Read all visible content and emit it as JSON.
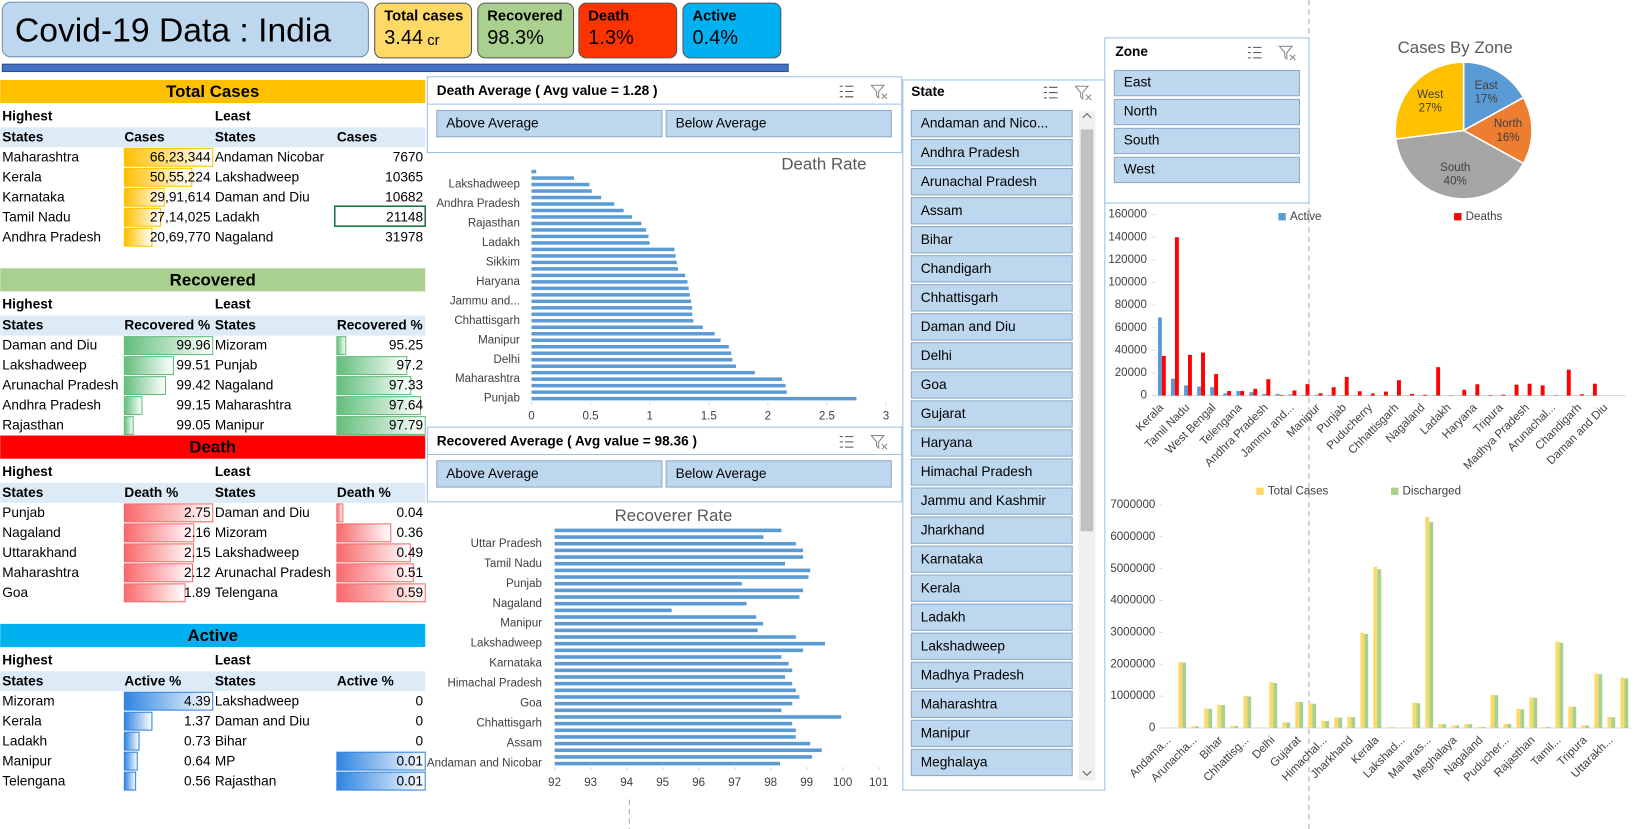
{
  "header": {
    "title": "Covid-19 Data : India",
    "kpis": [
      {
        "label": "Total cases",
        "value": "3.44",
        "unit": "cr",
        "color": "#ffd966"
      },
      {
        "label": "Recovered",
        "value": "98.3%",
        "color": "#a9d08e"
      },
      {
        "label": "Death",
        "value": "1.3%",
        "color": "#ff3300"
      },
      {
        "label": "Active",
        "value": "0.4%",
        "color": "#00b0f0"
      }
    ]
  },
  "tables": [
    {
      "title": "Total Cases",
      "color": "#ffc000",
      "bar_color": "#ffc000",
      "bar_base": "zero",
      "bars": [
        true,
        false
      ],
      "highest": "Highest",
      "least": "Least",
      "columns": [
        "States",
        "Cases",
        "States",
        "Cases"
      ],
      "rows": [
        [
          "Maharashtra",
          "66,23,344",
          "Andaman Nicobar",
          7670
        ],
        [
          "Kerala",
          "50,55,224",
          "Lakshadweep",
          10365
        ],
        [
          "Karnataka",
          "29,91,614",
          "Daman and Diu",
          10682
        ],
        [
          "Tamil Nadu",
          "27,14,025",
          "Ladakh",
          21148
        ],
        [
          "Andhra Pradesh",
          "20,69,770",
          "Nagaland",
          31978
        ]
      ]
    },
    {
      "title": "Recovered",
      "color": "#a9d08e",
      "bar_color": "#63be7b",
      "bar_base": "lowest",
      "bars": [
        true,
        true
      ],
      "highest": "Highest",
      "least": "Least",
      "columns": [
        "States",
        "Recovered %",
        "States",
        "Recovered %"
      ],
      "rows": [
        [
          "Daman and Diu",
          99.96,
          "Mizoram",
          95.25
        ],
        [
          "Lakshadweep",
          99.51,
          "Punjab",
          97.2
        ],
        [
          "Arunachal Pradesh",
          99.42,
          "Nagaland",
          97.33
        ],
        [
          "Andhra Pradesh",
          99.15,
          "Maharashtra",
          97.64
        ],
        [
          "Rajasthan",
          99.05,
          "Manipur",
          97.79
        ]
      ]
    },
    {
      "title": "Death",
      "color": "#ff0000",
      "bar_color": "#f8696b",
      "bar_base": "zero",
      "bars": [
        true,
        true
      ],
      "highest": "Highest",
      "least": "Least",
      "columns": [
        "States",
        "Death %",
        "States",
        "Death %"
      ],
      "rows": [
        [
          "Punjab",
          2.75,
          "Daman and Diu",
          0.04
        ],
        [
          "Nagaland",
          2.16,
          "Mizoram",
          0.36
        ],
        [
          "Uttarakhand",
          2.15,
          "Lakshadweep",
          0.49
        ],
        [
          "Maharashtra",
          2.12,
          "Arunachal Pradesh",
          0.51
        ],
        [
          "Goa",
          1.89,
          "Telengana",
          0.59
        ]
      ]
    },
    {
      "title": "Active",
      "color": "#00b0f0",
      "bar_color": "#2f84e0",
      "bar_base": "zero",
      "bars": [
        true,
        true
      ],
      "highest": "Highest",
      "least": "Least",
      "columns": [
        "States",
        "Active %",
        "States",
        "Active %"
      ],
      "rows": [
        [
          "Mizoram",
          4.39,
          "Lakshadweep",
          0
        ],
        [
          "Kerala",
          1.37,
          "Daman and Diu",
          0
        ],
        [
          "Ladakh",
          0.73,
          "Bihar",
          0
        ],
        [
          "Manipur",
          0.64,
          "MP",
          0.01
        ],
        [
          "Telengana",
          0.56,
          "Rajasthan",
          0.01
        ]
      ]
    }
  ],
  "slicers": {
    "death_average": {
      "title": "Death Average ( Avg value = 1.28 )",
      "items": [
        "Above Average",
        "Below Average"
      ]
    },
    "recovered_average": {
      "title": "Recovered Average ( Avg value = 98.36 )",
      "items": [
        "Above Average",
        "Below Average"
      ]
    },
    "state": {
      "title": "State",
      "items": [
        "Andaman and Nico...",
        "Andhra Pradesh",
        "Arunachal Pradesh",
        "Assam",
        "Bihar",
        "Chandigarh",
        "Chhattisgarh",
        "Daman and Diu",
        "Delhi",
        "Goa",
        "Gujarat",
        "Haryana",
        "Himachal Pradesh",
        "Jammu and Kashmir",
        "Jharkhand",
        "Karnataka",
        "Kerala",
        "Ladakh",
        "Lakshadweep",
        "Madhya Pradesh",
        "Maharashtra",
        "Manipur",
        "Meghalaya"
      ]
    },
    "zone": {
      "title": "Zone",
      "items": [
        "East",
        "North",
        "South",
        "West"
      ]
    }
  },
  "chart_data": [
    {
      "type": "barh",
      "title": "Death Rate",
      "color": "#5b9bd5",
      "categories": [
        null,
        null,
        "Lakshadweep",
        null,
        null,
        "Andhra Pradesh",
        null,
        null,
        "Rajasthan",
        null,
        null,
        "Ladakh",
        null,
        null,
        "Sikkim",
        null,
        null,
        "Haryana",
        null,
        null,
        "Jammu and...",
        null,
        null,
        "Chhattisgarh",
        null,
        null,
        "Manipur",
        null,
        null,
        "Delhi",
        null,
        null,
        "Maharashtra",
        null,
        null,
        "Punjab"
      ],
      "values": [
        0.04,
        0.36,
        0.49,
        0.51,
        0.59,
        0.7,
        0.78,
        0.85,
        0.93,
        0.97,
        0.99,
        1.0,
        1.21,
        1.22,
        1.23,
        1.24,
        1.3,
        1.32,
        1.33,
        1.34,
        1.35,
        1.36,
        1.36,
        1.37,
        1.45,
        1.55,
        1.6,
        1.67,
        1.69,
        1.7,
        1.73,
        1.89,
        2.12,
        2.15,
        2.16,
        2.75
      ],
      "xlim": [
        0,
        3
      ],
      "xticks": [
        0,
        0.5,
        1,
        1.5,
        2,
        2.5,
        3
      ]
    },
    {
      "type": "barh",
      "title": "Recoverer Rate",
      "color": "#5b9bd5",
      "categories": [
        null,
        null,
        "Uttar Pradesh",
        null,
        null,
        "Tamil Nadu",
        null,
        null,
        "Punjab",
        null,
        null,
        "Nagaland",
        null,
        null,
        "Manipur",
        null,
        null,
        "Lakshadweep",
        null,
        null,
        "Karnataka",
        null,
        null,
        "Himachal Pradesh",
        null,
        null,
        "Goa",
        null,
        null,
        "Chhattisgarh",
        null,
        null,
        "Assam",
        null,
        null,
        "Andaman and Nicobar"
      ],
      "values": [
        98.3,
        97.8,
        98.7,
        98.9,
        98.9,
        98.4,
        99.1,
        99.05,
        97.2,
        98.9,
        98.8,
        97.33,
        95.25,
        97.6,
        97.79,
        97.64,
        98.7,
        99.51,
        98.9,
        98.3,
        98.5,
        98.6,
        98.4,
        98.6,
        98.7,
        98.8,
        98.6,
        98.3,
        99.96,
        98.6,
        98.7,
        98.7,
        99.1,
        99.42,
        99.15,
        98.26
      ],
      "xlim": [
        92,
        101
      ],
      "xticks": [
        92,
        93,
        94,
        95,
        96,
        97,
        98,
        99,
        100,
        101
      ]
    },
    {
      "type": "pie",
      "title": "Cases By Zone",
      "categories": [
        "East",
        "North",
        "South",
        "West"
      ],
      "values": [
        17,
        16,
        40,
        27
      ],
      "value_labels": [
        "17%",
        "16%",
        "40%",
        "27%"
      ],
      "colors": [
        "#5b9bd5",
        "#ed7d31",
        "#a5a5a5",
        "#ffc000"
      ]
    },
    {
      "type": "bar",
      "categories": [
        "Kerala",
        null,
        "Tamil Nadu",
        null,
        "West Bengal",
        null,
        "Telengana",
        null,
        "Andhra Pradesh",
        null,
        "Jammu and...",
        null,
        "Manipur",
        null,
        "Punjab",
        null,
        "Puducherry",
        null,
        "Chhattisgarh",
        null,
        "Nagaland",
        null,
        "Ladakh",
        null,
        "Haryana",
        null,
        "Tripura",
        null,
        "Madhya Pradesh",
        null,
        "Arunachal...",
        null,
        "Chandigarh",
        null,
        "Daman and Diu",
        null
      ],
      "series": [
        {
          "name": "Active",
          "color": "#5b9bd5",
          "values": [
            69000,
            15000,
            9000,
            8000,
            7500,
            2000,
            4000,
            3000,
            1500,
            1500,
            1000,
            500,
            800,
            500,
            400,
            300,
            300,
            200,
            150,
            300,
            100,
            300,
            50,
            100,
            200,
            50,
            40,
            100,
            50,
            30,
            40,
            60,
            20,
            30,
            0,
            0
          ]
        },
        {
          "name": "Deaths",
          "color": "#ff0000",
          "values": [
            35000,
            140000,
            36000,
            38000,
            19000,
            4000,
            4000,
            6000,
            14500,
            600,
            4500,
            10100,
            2000,
            7400,
            16500,
            3800,
            1800,
            3500,
            13600,
            1500,
            700,
            25100,
            200,
            5100,
            10000,
            400,
            800,
            9600,
            10500,
            9000,
            300,
            22900,
            1100,
            10500,
            4,
            5
          ]
        }
      ],
      "ylim": [
        0,
        160000
      ],
      "yticks": [
        0,
        20000,
        40000,
        60000,
        80000,
        100000,
        120000,
        140000,
        160000
      ]
    },
    {
      "type": "bar",
      "categories": [
        "Andama...",
        null,
        "Arunacha...",
        null,
        "Bihar",
        null,
        "Chhattisg...",
        null,
        "Delhi",
        null,
        "Gujarat",
        null,
        "Himachal...",
        null,
        "Jharkhand",
        null,
        "Kerala",
        null,
        "Lakshad...",
        null,
        "Maharas...",
        null,
        "Meghalaya",
        null,
        "Nagaland",
        null,
        "Puducher...",
        null,
        "Rajasthan",
        null,
        "Tamil...",
        null,
        "Tripura",
        null,
        "Uttarakh...",
        null
      ],
      "series": [
        {
          "name": "Total Cases",
          "color": "#ffd966",
          "values": [
            7670,
            2069770,
            55000,
            610000,
            726000,
            65000,
            1005000,
            10682,
            1439000,
            178000,
            826000,
            771000,
            223000,
            330000,
            348000,
            2991614,
            5055224,
            21148,
            10365,
            792000,
            6623344,
            122000,
            83000,
            125000,
            31978,
            1040000,
            127000,
            602000,
            955000,
            32000,
            2714025,
            670000,
            84000,
            1710000,
            344000,
            1580000
          ]
        },
        {
          "name": "Discharged",
          "color": "#a9d18e",
          "values": [
            7520,
            2055000,
            54700,
            600000,
            716000,
            64000,
            990000,
            10670,
            1413000,
            174000,
            815000,
            760000,
            219000,
            326000,
            342000,
            2950000,
            4985000,
            20900,
            10310,
            781000,
            6467000,
            119000,
            81000,
            119000,
            31100,
            1030000,
            125000,
            585000,
            946000,
            31300,
            2674000,
            665000,
            83000,
            1687000,
            337000,
            1559000
          ]
        }
      ],
      "ylim": [
        0,
        7000000
      ],
      "yticks": [
        0,
        1000000,
        2000000,
        3000000,
        4000000,
        5000000,
        6000000,
        7000000
      ]
    }
  ]
}
